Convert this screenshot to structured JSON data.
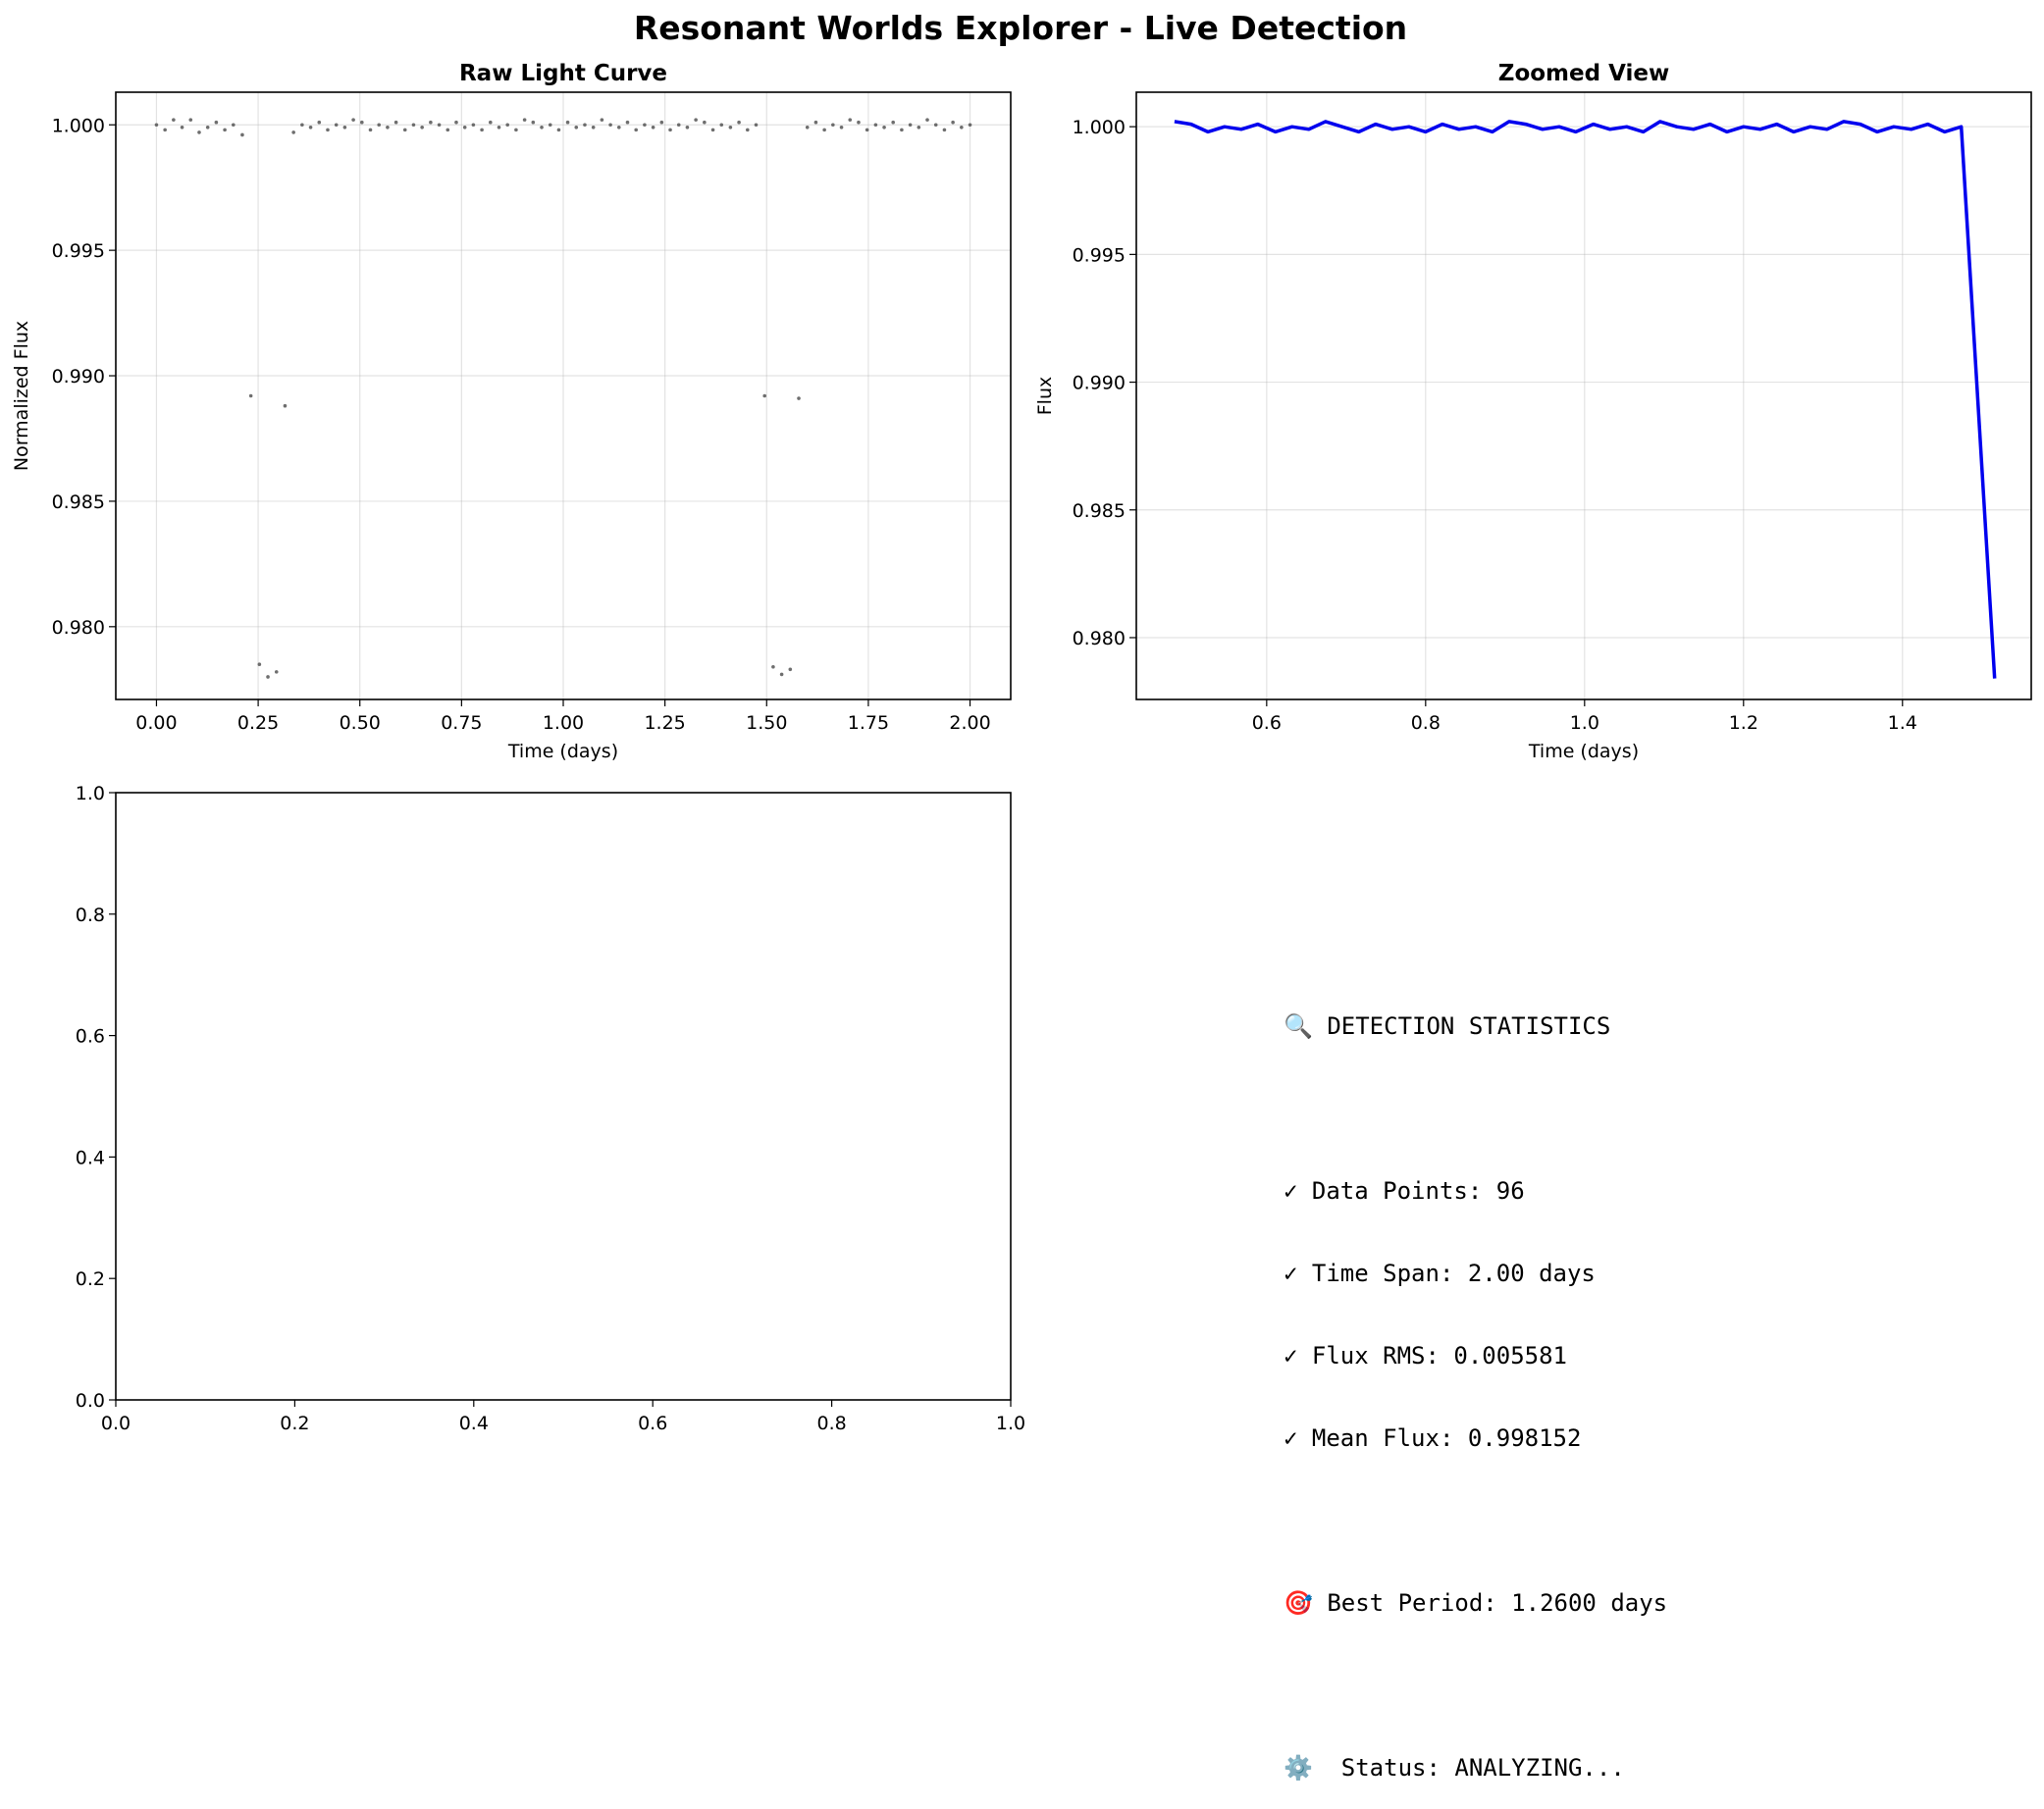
{
  "title": "Resonant Worlds Explorer - Live Detection",
  "chart_data": [
    {
      "type": "scatter",
      "title": "Raw Light Curve",
      "xlabel": "Time (days)",
      "ylabel": "Normalized Flux",
      "xlim": [
        -0.1,
        2.1
      ],
      "ylim": [
        0.9771,
        1.0013
      ],
      "xticks": [
        "0.00",
        "0.25",
        "0.50",
        "0.75",
        "1.00",
        "1.25",
        "1.50",
        "1.75",
        "2.00"
      ],
      "yticks": [
        "0.980",
        "0.985",
        "0.990",
        "0.995",
        "1.000"
      ],
      "grid": true,
      "marker_color": "#555555",
      "x": [
        0.0,
        0.021,
        0.042,
        0.063,
        0.084,
        0.105,
        0.126,
        0.147,
        0.168,
        0.189,
        0.211,
        0.232,
        0.253,
        0.274,
        0.295,
        0.316,
        0.337,
        0.358,
        0.379,
        0.4,
        0.421,
        0.442,
        0.463,
        0.484,
        0.505,
        0.526,
        0.547,
        0.568,
        0.589,
        0.611,
        0.632,
        0.653,
        0.674,
        0.695,
        0.716,
        0.737,
        0.758,
        0.779,
        0.8,
        0.821,
        0.842,
        0.863,
        0.884,
        0.905,
        0.926,
        0.947,
        0.968,
        0.989,
        1.011,
        1.032,
        1.053,
        1.074,
        1.095,
        1.116,
        1.137,
        1.158,
        1.179,
        1.2,
        1.221,
        1.242,
        1.263,
        1.284,
        1.305,
        1.326,
        1.347,
        1.368,
        1.389,
        1.411,
        1.432,
        1.453,
        1.474,
        1.495,
        1.516,
        1.537,
        1.558,
        1.579,
        1.6,
        1.621,
        1.642,
        1.663,
        1.684,
        1.705,
        1.726,
        1.747,
        1.768,
        1.789,
        1.811,
        1.832,
        1.853,
        1.874,
        1.895,
        1.916,
        1.937,
        1.958,
        1.979,
        2.0
      ],
      "y": [
        1.0,
        0.9998,
        1.0002,
        0.9999,
        1.0002,
        0.9997,
        0.9999,
        1.0001,
        0.9998,
        1.0,
        0.9996,
        0.9892,
        0.9785,
        0.978,
        0.9782,
        0.9888,
        0.9997,
        1.0,
        0.9999,
        1.0001,
        0.9998,
        1.0,
        0.9999,
        1.0002,
        1.0001,
        0.9998,
        1.0,
        0.9999,
        1.0001,
        0.9998,
        1.0,
        0.9999,
        1.0001,
        1.0,
        0.9998,
        1.0001,
        0.9999,
        1.0,
        0.9998,
        1.0001,
        0.9999,
        1.0,
        0.9998,
        1.0002,
        1.0001,
        0.9999,
        1.0,
        0.9998,
        1.0001,
        0.9999,
        1.0,
        0.9999,
        1.0002,
        1.0,
        0.9999,
        1.0001,
        0.9998,
        1.0,
        0.9999,
        1.0001,
        0.9998,
        1.0,
        0.9999,
        1.0002,
        1.0001,
        0.9998,
        1.0,
        0.9999,
        1.0001,
        0.9998,
        1.0,
        0.9892,
        0.9784,
        0.9781,
        0.9783,
        0.9891,
        0.9999,
        1.0001,
        0.9998,
        1.0,
        0.9999,
        1.0002,
        1.0001,
        0.9998,
        1.0,
        0.9999,
        1.0001,
        0.9998,
        1.0,
        0.9999,
        1.0002,
        1.0,
        0.9998,
        1.0001,
        0.9999,
        1.0
      ]
    },
    {
      "type": "line",
      "title": "Zoomed View",
      "xlabel": "Time (days)",
      "ylabel": "Flux",
      "xlim": [
        0.436,
        1.562
      ],
      "ylim": [
        0.97758,
        1.00135
      ],
      "xticks": [
        "0.6",
        "0.8",
        "1.0",
        "1.2",
        "1.4"
      ],
      "yticks": [
        "0.980",
        "0.985",
        "0.990",
        "0.995",
        "1.000"
      ],
      "grid": true,
      "line_color": "#0000ee",
      "x": [
        0.484,
        0.505,
        0.526,
        0.547,
        0.568,
        0.589,
        0.611,
        0.632,
        0.653,
        0.674,
        0.695,
        0.716,
        0.737,
        0.758,
        0.779,
        0.8,
        0.821,
        0.842,
        0.863,
        0.884,
        0.905,
        0.926,
        0.947,
        0.968,
        0.989,
        1.011,
        1.032,
        1.053,
        1.074,
        1.095,
        1.116,
        1.137,
        1.158,
        1.179,
        1.2,
        1.221,
        1.242,
        1.263,
        1.284,
        1.305,
        1.326,
        1.347,
        1.368,
        1.389,
        1.411,
        1.432,
        1.453,
        1.474,
        1.516
      ],
      "y": [
        1.0002,
        1.0001,
        0.9998,
        1.0,
        0.9999,
        1.0001,
        0.9998,
        1.0,
        0.9999,
        1.0002,
        1.0,
        0.9998,
        1.0001,
        0.9999,
        1.0,
        0.9998,
        1.0001,
        0.9999,
        1.0,
        0.9998,
        1.0002,
        1.0001,
        0.9999,
        1.0,
        0.9998,
        1.0001,
        0.9999,
        1.0,
        0.9998,
        1.0002,
        1.0,
        0.9999,
        1.0001,
        0.9998,
        1.0,
        0.9999,
        1.0001,
        0.9998,
        1.0,
        0.9999,
        1.0002,
        1.0001,
        0.9998,
        1.0,
        0.9999,
        1.0001,
        0.9998,
        1.0,
        0.9784
      ]
    },
    {
      "type": "scatter",
      "title": "",
      "xlabel": "",
      "ylabel": "",
      "xlim": [
        0.0,
        1.0
      ],
      "ylim": [
        0.0,
        1.0
      ],
      "xticks": [
        "0.0",
        "0.2",
        "0.4",
        "0.6",
        "0.8",
        "1.0"
      ],
      "yticks": [
        "0.0",
        "0.2",
        "0.4",
        "0.6",
        "0.8",
        "1.0"
      ],
      "grid": false,
      "x": [],
      "y": []
    }
  ],
  "stats": {
    "heading": "🔍 DETECTION STATISTICS",
    "data_points": "✓ Data Points: 96",
    "time_span": "✓ Time Span: 2.00 days",
    "flux_rms": "✓ Flux RMS: 0.005581",
    "mean_flux": "✓ Mean Flux: 0.998152",
    "best_period": "🎯 Best Period: 1.2600 days",
    "status": "⚙️  Status: ANALYZING..."
  }
}
